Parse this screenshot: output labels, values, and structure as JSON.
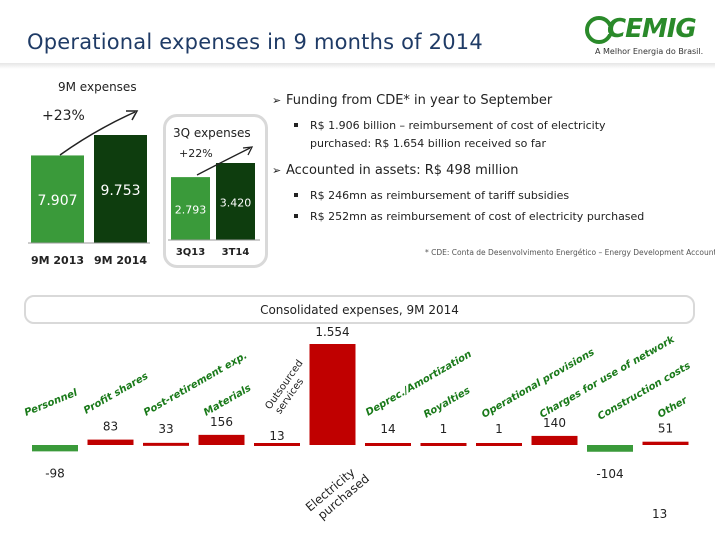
{
  "title": "Operational  expenses in 9 months of 2014",
  "logo": {
    "word": "CEMIG",
    "tagline": "A Melhor Energia do Brasil."
  },
  "page_number": "13",
  "colors": {
    "green_light": "#3a9a3a",
    "green_dark": "#0e3d0e",
    "red": "#c00000",
    "grey_border": "#d9d9d9"
  },
  "bullets": [
    {
      "text": "Funding from CDE* in year to September",
      "subs": [
        "R$ 1.906 billion – reimbursement of cost of electricity",
        "purchased: R$ 1.654 billion received so far"
      ]
    },
    {
      "text": "Accounted in assets: R$ 498 million",
      "subs": [
        "R$ 246mn as reimbursement of tariff subsidies",
        "R$ 252mn as reimbursement of cost of electricity purchased"
      ]
    }
  ],
  "footnote": "* CDE: Conta de Desenvolvimento Energético – Energy Development Account.",
  "section_title": "Consolidated expenses, 9M 2014",
  "chart_data": [
    {
      "type": "bar",
      "title": "9M expenses",
      "categories": [
        "9M 2013",
        "9M 2014"
      ],
      "values": [
        7.907,
        9.753
      ],
      "value_labels": [
        "7.907",
        "9.753"
      ],
      "annotation": "+23%",
      "colors": [
        "#3a9a3a",
        "#0e3d0e"
      ]
    },
    {
      "type": "bar",
      "title": "3Q expenses",
      "categories": [
        "3Q13",
        "3T14"
      ],
      "values": [
        2.793,
        3.42
      ],
      "value_labels": [
        "2.793",
        "3.420"
      ],
      "annotation": "+22%",
      "colors": [
        "#3a9a3a",
        "#0e3d0e"
      ]
    },
    {
      "type": "bar",
      "title": "Consolidated expenses, 9M 2014",
      "categories": [
        "Personnel",
        "Profit shares",
        "Post-retirement exp.",
        "Materials",
        "Outsourced services",
        "Electricity purchased",
        "Deprec./Amortization",
        "Royalties",
        "Operational provisions",
        "Charges for use of network",
        "Construction costs",
        "Other"
      ],
      "values": [
        -98,
        83,
        33,
        156,
        13,
        1554,
        14,
        1,
        1,
        140,
        -104,
        51
      ],
      "value_labels": [
        "-98",
        "83",
        "33",
        "156",
        "13",
        "1.554",
        "14",
        "1",
        "1",
        "140",
        "-104",
        "51"
      ]
    }
  ]
}
